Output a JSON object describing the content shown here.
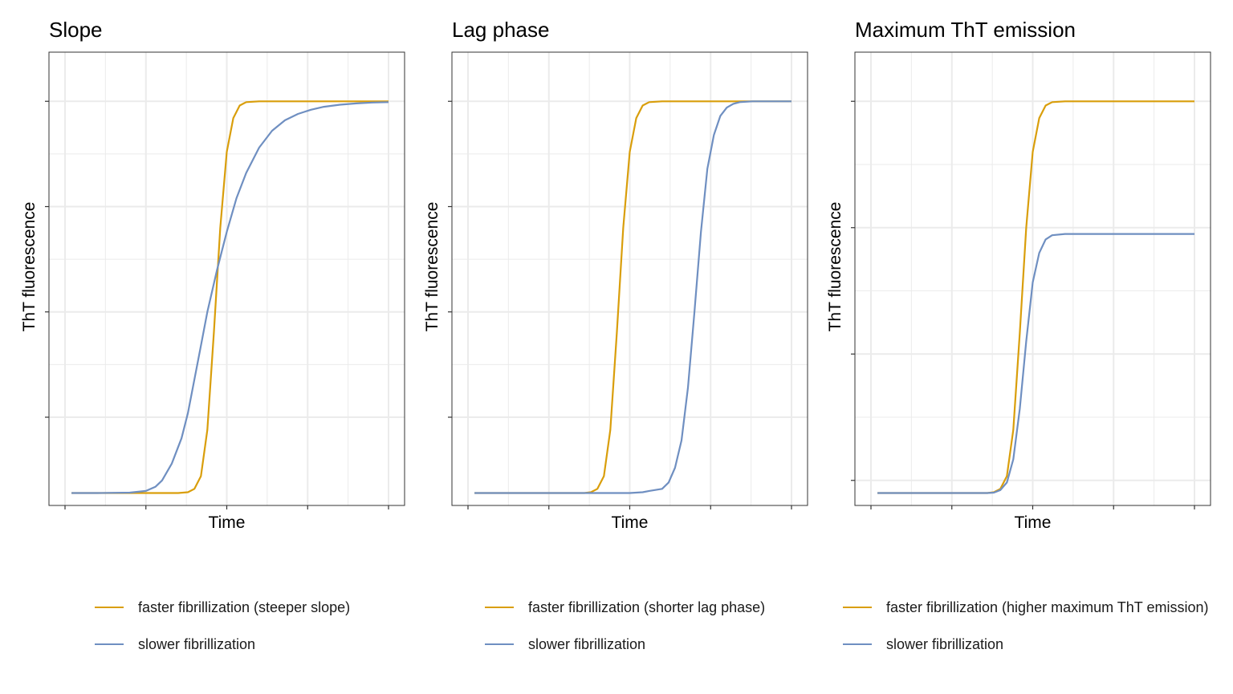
{
  "colors": {
    "faster": "#D99E0B",
    "slower": "#6F8FC1",
    "grid": "#EBEBEB",
    "frame": "#333333"
  },
  "chart_data": [
    {
      "type": "line",
      "title": "Slope",
      "xlabel": "Time",
      "ylabel": "ThT fluorescence",
      "xlim": [
        0,
        1
      ],
      "ylim": [
        0,
        1.1
      ],
      "x_ticks": [
        0,
        0.25,
        0.5,
        0.75,
        1.0
      ],
      "y_ticks": [
        0.2,
        0.45,
        0.7,
        0.95
      ],
      "grid": true,
      "legend_position": "bottom",
      "series": [
        {
          "name": "faster fibrillization (steeper slope)",
          "color_key": "faster",
          "points": [
            [
              0.02,
              0.02
            ],
            [
              0.1,
              0.02
            ],
            [
              0.2,
              0.02
            ],
            [
              0.3,
              0.02
            ],
            [
              0.35,
              0.02
            ],
            [
              0.38,
              0.022
            ],
            [
              0.4,
              0.03
            ],
            [
              0.42,
              0.06
            ],
            [
              0.44,
              0.17
            ],
            [
              0.46,
              0.4
            ],
            [
              0.48,
              0.65
            ],
            [
              0.5,
              0.83
            ],
            [
              0.52,
              0.91
            ],
            [
              0.54,
              0.94
            ],
            [
              0.56,
              0.948
            ],
            [
              0.6,
              0.95
            ],
            [
              0.7,
              0.95
            ],
            [
              0.8,
              0.95
            ],
            [
              0.9,
              0.95
            ],
            [
              1.0,
              0.95
            ]
          ]
        },
        {
          "name": "slower fibrillization",
          "color_key": "slower",
          "points": [
            [
              0.02,
              0.02
            ],
            [
              0.1,
              0.02
            ],
            [
              0.2,
              0.021
            ],
            [
              0.25,
              0.025
            ],
            [
              0.28,
              0.035
            ],
            [
              0.3,
              0.05
            ],
            [
              0.33,
              0.09
            ],
            [
              0.36,
              0.15
            ],
            [
              0.38,
              0.21
            ],
            [
              0.4,
              0.29
            ],
            [
              0.42,
              0.37
            ],
            [
              0.44,
              0.45
            ],
            [
              0.47,
              0.55
            ],
            [
              0.5,
              0.64
            ],
            [
              0.53,
              0.72
            ],
            [
              0.56,
              0.78
            ],
            [
              0.6,
              0.84
            ],
            [
              0.64,
              0.88
            ],
            [
              0.68,
              0.905
            ],
            [
              0.72,
              0.92
            ],
            [
              0.76,
              0.93
            ],
            [
              0.8,
              0.937
            ],
            [
              0.85,
              0.942
            ],
            [
              0.9,
              0.945
            ],
            [
              0.95,
              0.947
            ],
            [
              1.0,
              0.948
            ]
          ]
        }
      ]
    },
    {
      "type": "line",
      "title": "Lag phase",
      "xlabel": "Time",
      "ylabel": "ThT fluorescence",
      "xlim": [
        0,
        1
      ],
      "ylim": [
        0,
        1.1
      ],
      "x_ticks": [
        0,
        0.25,
        0.5,
        0.75,
        1.0
      ],
      "y_ticks": [
        0.2,
        0.45,
        0.7,
        0.95
      ],
      "grid": true,
      "legend_position": "bottom",
      "series": [
        {
          "name": "faster fibrillization (shorter lag phase)",
          "color_key": "faster",
          "points": [
            [
              0.02,
              0.02
            ],
            [
              0.1,
              0.02
            ],
            [
              0.2,
              0.02
            ],
            [
              0.3,
              0.02
            ],
            [
              0.36,
              0.02
            ],
            [
              0.38,
              0.022
            ],
            [
              0.4,
              0.03
            ],
            [
              0.42,
              0.06
            ],
            [
              0.44,
              0.17
            ],
            [
              0.46,
              0.4
            ],
            [
              0.48,
              0.65
            ],
            [
              0.5,
              0.83
            ],
            [
              0.52,
              0.91
            ],
            [
              0.54,
              0.94
            ],
            [
              0.56,
              0.948
            ],
            [
              0.6,
              0.95
            ],
            [
              0.7,
              0.95
            ],
            [
              0.8,
              0.95
            ],
            [
              0.9,
              0.95
            ],
            [
              1.0,
              0.95
            ]
          ]
        },
        {
          "name": "slower fibrillization",
          "color_key": "slower",
          "points": [
            [
              0.02,
              0.02
            ],
            [
              0.2,
              0.02
            ],
            [
              0.4,
              0.02
            ],
            [
              0.5,
              0.02
            ],
            [
              0.54,
              0.022
            ],
            [
              0.56,
              0.025
            ],
            [
              0.6,
              0.03
            ],
            [
              0.62,
              0.045
            ],
            [
              0.64,
              0.08
            ],
            [
              0.66,
              0.145
            ],
            [
              0.68,
              0.27
            ],
            [
              0.7,
              0.45
            ],
            [
              0.72,
              0.64
            ],
            [
              0.74,
              0.79
            ],
            [
              0.76,
              0.87
            ],
            [
              0.78,
              0.915
            ],
            [
              0.8,
              0.935
            ],
            [
              0.82,
              0.944
            ],
            [
              0.84,
              0.948
            ],
            [
              0.88,
              0.95
            ],
            [
              0.94,
              0.95
            ],
            [
              1.0,
              0.95
            ]
          ]
        }
      ]
    },
    {
      "type": "line",
      "title": "Maximum ThT emission",
      "xlabel": "Time",
      "ylabel": "ThT fluorescence",
      "xlim": [
        0,
        1
      ],
      "ylim": [
        0,
        1.1
      ],
      "x_ticks": [
        0,
        0.25,
        0.5,
        0.75,
        1.0
      ],
      "y_ticks": [
        0.05,
        0.35,
        0.65,
        0.95
      ],
      "grid": true,
      "legend_position": "bottom",
      "series": [
        {
          "name": "faster fibrillization (higher maximum ThT emission)",
          "color_key": "faster",
          "points": [
            [
              0.02,
              0.02
            ],
            [
              0.1,
              0.02
            ],
            [
              0.2,
              0.02
            ],
            [
              0.3,
              0.02
            ],
            [
              0.36,
              0.02
            ],
            [
              0.38,
              0.022
            ],
            [
              0.4,
              0.03
            ],
            [
              0.42,
              0.06
            ],
            [
              0.44,
              0.17
            ],
            [
              0.46,
              0.4
            ],
            [
              0.48,
              0.65
            ],
            [
              0.5,
              0.83
            ],
            [
              0.52,
              0.91
            ],
            [
              0.54,
              0.94
            ],
            [
              0.56,
              0.948
            ],
            [
              0.6,
              0.95
            ],
            [
              0.7,
              0.95
            ],
            [
              0.8,
              0.95
            ],
            [
              0.9,
              0.95
            ],
            [
              1.0,
              0.95
            ]
          ]
        },
        {
          "name": "slower fibrillization",
          "color_key": "slower",
          "points": [
            [
              0.02,
              0.02
            ],
            [
              0.1,
              0.02
            ],
            [
              0.2,
              0.02
            ],
            [
              0.3,
              0.02
            ],
            [
              0.36,
              0.02
            ],
            [
              0.38,
              0.021
            ],
            [
              0.4,
              0.027
            ],
            [
              0.42,
              0.045
            ],
            [
              0.44,
              0.1
            ],
            [
              0.46,
              0.22
            ],
            [
              0.48,
              0.38
            ],
            [
              0.5,
              0.52
            ],
            [
              0.52,
              0.59
            ],
            [
              0.54,
              0.622
            ],
            [
              0.56,
              0.632
            ],
            [
              0.6,
              0.635
            ],
            [
              0.7,
              0.635
            ],
            [
              0.8,
              0.635
            ],
            [
              0.9,
              0.635
            ],
            [
              1.0,
              0.635
            ]
          ]
        }
      ]
    }
  ]
}
